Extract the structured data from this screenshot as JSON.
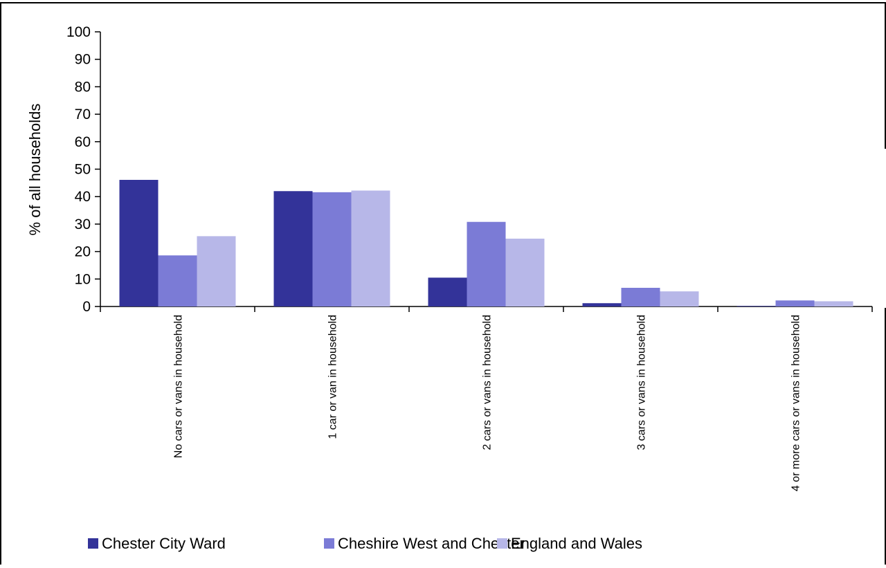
{
  "chart_data": {
    "type": "bar",
    "title": "",
    "xlabel": "",
    "ylabel": "% of all households",
    "ylim": [
      0,
      100
    ],
    "yticks": [
      0,
      10,
      20,
      30,
      40,
      50,
      60,
      70,
      80,
      90,
      100
    ],
    "grid": false,
    "legend_position": "bottom",
    "categories": [
      "No cars or vans in household",
      "1 car or van in household",
      "2 cars or vans in household",
      "3 cars or vans in household",
      "4 or more cars or vans in household"
    ],
    "series": [
      {
        "name": "Chester City Ward",
        "color": "#333399",
        "values": [
          46.1,
          42.0,
          10.5,
          1.2,
          0.2
        ]
      },
      {
        "name": "Cheshire West and Chester",
        "color": "#7b7bd6",
        "values": [
          18.6,
          41.6,
          30.8,
          6.8,
          2.2
        ]
      },
      {
        "name": "England and Wales",
        "color": "#b7b7e8",
        "values": [
          25.6,
          42.2,
          24.7,
          5.5,
          1.9
        ]
      }
    ]
  }
}
